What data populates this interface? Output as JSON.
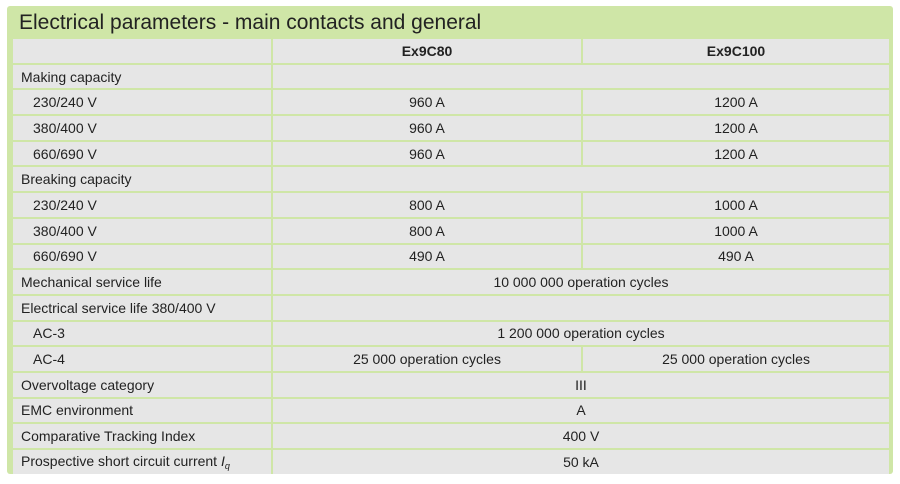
{
  "title": "Electrical parameters - main contacts and general",
  "columns": [
    "",
    "Ex9C80",
    "Ex9C100"
  ],
  "rows": [
    {
      "label": "Making capacity",
      "values": [
        ""
      ]
    },
    {
      "label": "230/240 V",
      "values": [
        "960 A",
        "1200 A"
      ]
    },
    {
      "label": "380/400 V",
      "values": [
        "960 A",
        "1200 A"
      ]
    },
    {
      "label": "660/690 V",
      "values": [
        "960 A",
        "1200 A"
      ]
    },
    {
      "label": "Breaking capacity",
      "values": [
        ""
      ]
    },
    {
      "label": "230/240 V",
      "values": [
        "800 A",
        "1000 A"
      ]
    },
    {
      "label": "380/400 V",
      "values": [
        "800 A",
        "1000 A"
      ]
    },
    {
      "label": "660/690 V",
      "values": [
        "490 A",
        "490 A"
      ]
    },
    {
      "label": "Mechanical service life",
      "values": [
        "10 000 000 operation cycles"
      ]
    },
    {
      "label": "Electrical service life 380/400 V",
      "values": [
        ""
      ]
    },
    {
      "label": "AC-3",
      "values": [
        "1 200 000 operation cycles"
      ]
    },
    {
      "label": "AC-4",
      "values": [
        "25 000 operation cycles",
        "25 000 operation cycles"
      ]
    },
    {
      "label": "Overvoltage category",
      "values": [
        "III"
      ]
    },
    {
      "label": "EMC environment",
      "values": [
        "A"
      ]
    },
    {
      "label": "Comparative Tracking Index",
      "values": [
        "400 V"
      ]
    },
    {
      "label": "Prospective short circuit current",
      "label_symbol": "I",
      "label_subscript": "q",
      "values": [
        "50 kA"
      ]
    }
  ],
  "colors": {
    "frame": "#cfe6a7",
    "cell": "#e6e6e6"
  }
}
